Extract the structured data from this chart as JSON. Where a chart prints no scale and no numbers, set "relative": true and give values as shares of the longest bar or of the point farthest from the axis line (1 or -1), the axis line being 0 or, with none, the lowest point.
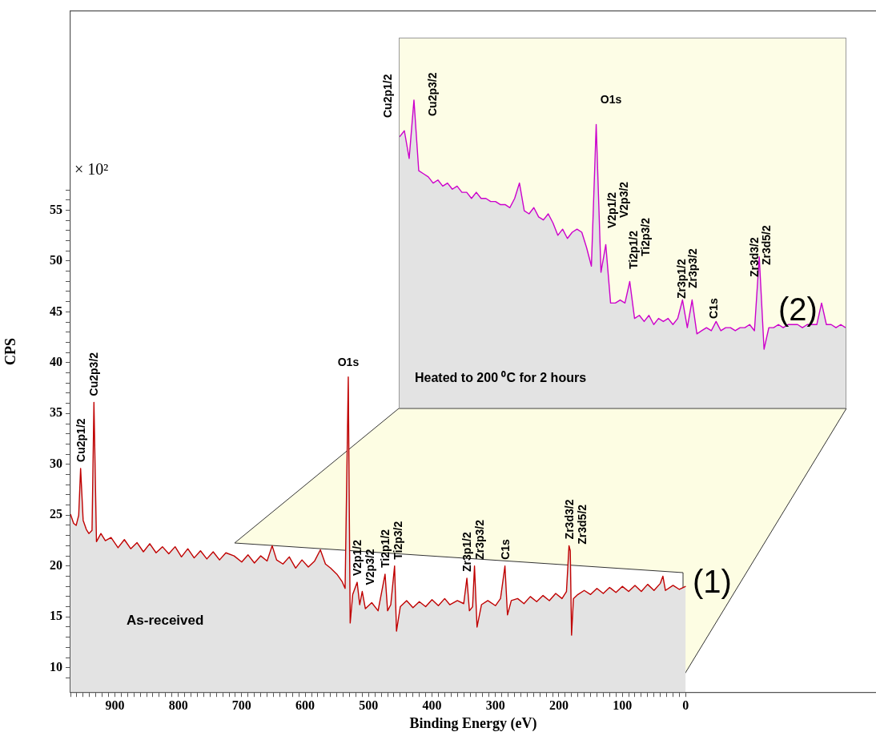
{
  "chart_data": [
    {
      "type": "area",
      "xlabel": "Binding Energy (eV)",
      "ylabel": "CPS",
      "xlim": [
        970,
        -300
      ],
      "ylim": [
        7.6,
        74.6
      ],
      "xticks": [
        {
          "value": 970,
          "label": null
        },
        {
          "value": 960,
          "label": null
        },
        {
          "value": 950,
          "label": null
        },
        {
          "value": 940,
          "label": null
        },
        {
          "value": 930,
          "label": null
        },
        {
          "value": 920,
          "label": null
        },
        {
          "value": 910,
          "label": null
        },
        900,
        {
          "value": 890,
          "label": null
        },
        {
          "value": 880,
          "label": null
        },
        {
          "value": 870,
          "label": null
        },
        {
          "value": 860,
          "label": null
        },
        {
          "value": 850,
          "label": null
        },
        {
          "value": 840,
          "label": null
        },
        {
          "value": 830,
          "label": null
        },
        {
          "value": 820,
          "label": null
        },
        {
          "value": 810,
          "label": null
        },
        800,
        {
          "value": 790,
          "label": null
        },
        {
          "value": 780,
          "label": null
        },
        {
          "value": 770,
          "label": null
        },
        {
          "value": 760,
          "label": null
        },
        {
          "value": 750,
          "label": null
        },
        {
          "value": 740,
          "label": null
        },
        {
          "value": 730,
          "label": null
        },
        {
          "value": 720,
          "label": null
        },
        {
          "value": 710,
          "label": null
        },
        700,
        {
          "value": 690,
          "label": null
        },
        {
          "value": 680,
          "label": null
        },
        {
          "value": 670,
          "label": null
        },
        {
          "value": 660,
          "label": null
        },
        {
          "value": 650,
          "label": null
        },
        {
          "value": 640,
          "label": null
        },
        {
          "value": 630,
          "label": null
        },
        {
          "value": 620,
          "label": null
        },
        {
          "value": 610,
          "label": null
        },
        600,
        {
          "value": 590,
          "label": null
        },
        {
          "value": 580,
          "label": null
        },
        {
          "value": 570,
          "label": null
        },
        {
          "value": 560,
          "label": null
        },
        {
          "value": 550,
          "label": null
        },
        {
          "value": 540,
          "label": null
        },
        {
          "value": 530,
          "label": null
        },
        {
          "value": 520,
          "label": null
        },
        {
          "value": 510,
          "label": null
        },
        500,
        {
          "value": 490,
          "label": null
        },
        {
          "value": 480,
          "label": null
        },
        {
          "value": 470,
          "label": null
        },
        {
          "value": 460,
          "label": null
        },
        {
          "value": 450,
          "label": null
        },
        {
          "value": 440,
          "label": null
        },
        {
          "value": 430,
          "label": null
        },
        {
          "value": 420,
          "label": null
        },
        {
          "value": 410,
          "label": null
        },
        400,
        {
          "value": 390,
          "label": null
        },
        {
          "value": 380,
          "label": null
        },
        {
          "value": 370,
          "label": null
        },
        {
          "value": 360,
          "label": null
        },
        {
          "value": 350,
          "label": null
        },
        {
          "value": 340,
          "label": null
        },
        {
          "value": 330,
          "label": null
        },
        {
          "value": 320,
          "label": null
        },
        {
          "value": 310,
          "label": null
        },
        300,
        {
          "value": 290,
          "label": null
        },
        {
          "value": 280,
          "label": null
        },
        {
          "value": 270,
          "label": null
        },
        {
          "value": 260,
          "label": null
        },
        {
          "value": 250,
          "label": null
        },
        {
          "value": 240,
          "label": null
        },
        {
          "value": 230,
          "label": null
        },
        {
          "value": 220,
          "label": null
        },
        {
          "value": 210,
          "label": null
        },
        200,
        {
          "value": 190,
          "label": null
        },
        {
          "value": 180,
          "label": null
        },
        {
          "value": 170,
          "label": null
        },
        {
          "value": 160,
          "label": null
        },
        {
          "value": 150,
          "label": null
        },
        {
          "value": 140,
          "label": null
        },
        {
          "value": 130,
          "label": null
        },
        {
          "value": 120,
          "label": null
        },
        {
          "value": 110,
          "label": null
        },
        100,
        {
          "value": 90,
          "label": null
        },
        {
          "value": 80,
          "label": null
        },
        {
          "value": 70,
          "label": null
        },
        {
          "value": 60,
          "label": null
        },
        {
          "value": 50,
          "label": null
        },
        {
          "value": 40,
          "label": null
        },
        {
          "value": 30,
          "label": null
        },
        {
          "value": 20,
          "label": null
        },
        {
          "value": 10,
          "label": null
        },
        0
      ],
      "yticks": [
        {
          "value": 9,
          "label": null
        },
        10,
        {
          "value": 11,
          "label": null
        },
        {
          "value": 12,
          "label": null
        },
        {
          "value": 13,
          "label": null
        },
        {
          "value": 14,
          "label": null
        },
        15,
        {
          "value": 16,
          "label": null
        },
        {
          "value": 17,
          "label": null
        },
        {
          "value": 18,
          "label": null
        },
        {
          "value": 19,
          "label": null
        },
        20,
        {
          "value": 21,
          "label": null
        },
        {
          "value": 22,
          "label": null
        },
        {
          "value": 23,
          "label": null
        },
        {
          "value": 24,
          "label": null
        },
        25,
        {
          "value": 26,
          "label": null
        },
        {
          "value": 27,
          "label": null
        },
        {
          "value": 28,
          "label": null
        },
        {
          "value": 29,
          "label": null
        },
        30,
        {
          "value": 31,
          "label": null
        },
        {
          "value": 32,
          "label": null
        },
        {
          "value": 33,
          "label": null
        },
        {
          "value": 34,
          "label": null
        },
        35,
        {
          "value": 36,
          "label": null
        },
        {
          "value": 37,
          "label": null
        },
        {
          "value": 38,
          "label": null
        },
        {
          "value": 39,
          "label": null
        },
        40,
        {
          "value": 41,
          "label": null
        },
        {
          "value": 42,
          "label": null
        },
        {
          "value": 43,
          "label": null
        },
        {
          "value": 44,
          "label": null
        },
        45,
        {
          "value": 46,
          "label": null
        },
        {
          "value": 47,
          "label": null
        },
        {
          "value": 48,
          "label": null
        },
        {
          "value": 49,
          "label": null
        },
        50,
        {
          "value": 51,
          "label": null
        },
        {
          "value": 52,
          "label": null
        },
        {
          "value": 53,
          "label": null
        },
        {
          "value": 54,
          "label": null
        },
        55,
        {
          "value": 56,
          "label": null
        },
        {
          "value": 57,
          "label": null
        }
      ],
      "series": [
        {
          "color": "#c00000",
          "x": [
            970,
            965,
            961,
            957,
            954,
            950,
            945,
            941,
            936,
            933,
            929,
            922,
            915,
            906,
            895,
            885,
            875,
            865,
            855,
            845,
            835,
            825,
            815,
            805,
            795,
            785,
            775,
            765,
            755,
            745,
            735,
            725,
            712,
            700,
            690,
            680,
            670,
            660,
            652,
            645,
            635,
            625,
            615,
            605,
            595,
            585,
            576,
            568,
            560,
            550,
            542,
            537,
            532,
            529,
            525,
            518,
            514,
            510,
            505,
            495,
            485,
            474,
            470,
            465,
            459,
            456,
            450,
            440,
            430,
            420,
            410,
            400,
            390,
            380,
            372,
            360,
            350,
            345,
            341,
            336,
            333,
            329,
            322,
            312,
            300,
            292,
            285,
            281,
            275,
            265,
            255,
            245,
            235,
            225,
            215,
            205,
            195,
            188,
            184,
            182,
            180,
            177,
            170,
            160,
            150,
            140,
            130,
            120,
            110,
            100,
            90,
            80,
            70,
            60,
            50,
            40,
            36,
            32,
            20,
            10,
            0
          ],
          "values": [
            25.1,
            24.2,
            24,
            25,
            29.6,
            24.5,
            23.6,
            23.2,
            23.5,
            36.1,
            22.4,
            23.2,
            22.5,
            22.8,
            21.8,
            22.6,
            21.7,
            22.3,
            21.4,
            22.2,
            21.3,
            21.9,
            21.2,
            21.9,
            20.9,
            21.7,
            20.8,
            21.5,
            20.7,
            21.4,
            20.6,
            21.3,
            21,
            20.4,
            21.1,
            20.3,
            21,
            20.5,
            22,
            20.6,
            20.2,
            20.9,
            19.8,
            20.6,
            19.9,
            20.5,
            21.6,
            20.2,
            19.8,
            19.2,
            18.5,
            17.8,
            38.6,
            14.4,
            17.2,
            18.4,
            16.2,
            17.5,
            15.8,
            16.4,
            15.6,
            19.2,
            15.6,
            16.2,
            20,
            13.6,
            16,
            16.6,
            15.9,
            16.5,
            16,
            16.7,
            16.1,
            16.8,
            16.2,
            16.6,
            16.3,
            18.8,
            15.6,
            16,
            20,
            14,
            16.2,
            16.6,
            16.1,
            16.8,
            20,
            15.2,
            16.6,
            16.8,
            16.3,
            17,
            16.5,
            17.1,
            16.6,
            17.3,
            16.8,
            17.5,
            22,
            21.5,
            13.2,
            16.8,
            17.2,
            17.6,
            17.2,
            17.8,
            17.3,
            17.9,
            17.4,
            18,
            17.5,
            18.1,
            17.5,
            18.2,
            17.6,
            18.3,
            19,
            17.6,
            18.1,
            17.7,
            18
          ]
        }
      ],
      "annotations": [
        "× 10²",
        "As-received",
        "(1)",
        {
          "text": "Cu2p1/2",
          "x": 954,
          "y": 29.6
        },
        {
          "text": "Cu2p3/2",
          "x": 933,
          "y": 36.1
        },
        {
          "text": "O1s",
          "x": 532,
          "y": 38.6
        },
        {
          "text": "V2p1/2",
          "x": 518,
          "y": 18.4
        },
        {
          "text": "V2p3/2",
          "x": 510,
          "y": 17.5
        },
        {
          "text": "Ti2p1/2",
          "x": 474,
          "y": 19.2
        },
        {
          "text": "Ti2p3/2",
          "x": 459,
          "y": 20
        },
        {
          "text": "Zr3p1/2",
          "x": 345,
          "y": 18.8
        },
        {
          "text": "Zr3p3/2",
          "x": 333,
          "y": 20
        },
        {
          "text": "C1s",
          "x": 285,
          "y": 20
        },
        {
          "text": "Zr3d3/2",
          "x": 184,
          "y": 22
        },
        {
          "text": "Zr3d5/2",
          "x": 182,
          "y": 21.5
        }
      ]
    },
    {
      "type": "area",
      "relative": true,
      "categories": [
        null,
        null,
        null,
        null,
        null,
        null,
        null,
        null,
        null,
        null,
        null,
        null,
        null,
        null,
        null,
        null,
        null,
        null,
        null,
        null,
        null,
        null,
        null,
        null,
        null,
        null,
        null,
        null,
        null,
        null,
        null,
        null,
        null,
        null,
        null,
        null,
        null,
        null,
        null,
        null,
        null,
        null,
        null,
        null,
        null,
        null,
        null,
        null,
        null,
        null,
        null,
        null,
        null,
        null,
        null,
        null,
        null,
        null,
        null,
        null,
        null,
        null,
        null,
        null,
        null,
        null,
        null,
        null,
        null,
        null,
        null,
        null,
        null,
        null,
        null,
        null,
        null,
        null,
        null,
        null,
        null,
        null,
        null,
        null,
        null,
        null,
        null,
        null,
        null,
        null,
        null,
        null,
        null,
        null
      ],
      "series": [
        {
          "color": "#cc00cc",
          "values": [
            0.88,
            0.9,
            0.81,
            1,
            0.77,
            0.76,
            0.75,
            0.73,
            0.74,
            0.72,
            0.73,
            0.71,
            0.72,
            0.7,
            0.7,
            0.68,
            0.7,
            0.68,
            0.68,
            0.67,
            0.67,
            0.66,
            0.66,
            0.65,
            0.68,
            0.73,
            0.64,
            0.63,
            0.65,
            0.62,
            0.61,
            0.63,
            0.6,
            0.56,
            0.58,
            0.55,
            0.57,
            0.58,
            0.57,
            0.52,
            0.46,
            0.92,
            0.44,
            0.53,
            0.34,
            0.34,
            0.35,
            0.34,
            0.41,
            0.29,
            0.3,
            0.28,
            0.3,
            0.27,
            0.29,
            0.28,
            0.29,
            0.27,
            0.29,
            0.35,
            0.26,
            0.35,
            0.24,
            0.25,
            0.26,
            0.25,
            0.28,
            0.25,
            0.26,
            0.26,
            0.25,
            0.26,
            0.26,
            0.27,
            0.25,
            0.49,
            0.19,
            0.26,
            0.26,
            0.27,
            0.26,
            0.27,
            0.27,
            0.27,
            0.26,
            0.27,
            0.27,
            0.27,
            0.34,
            0.27,
            0.27,
            0.26,
            0.27,
            0.26
          ]
        }
      ],
      "annotations": [
        "Heated to 200 ⁰C for 2 hours",
        "(2)",
        "Cu2p1/2",
        "Cu2p3/2",
        "O1s",
        "V2p1/2",
        "V2p3/2",
        "Ti2p1/2",
        "Ti2p3/2",
        "Zr3p1/2",
        "Zr3p3/2",
        "C1s",
        "Zr3d3/2",
        "Zr3d5/2"
      ]
    }
  ]
}
